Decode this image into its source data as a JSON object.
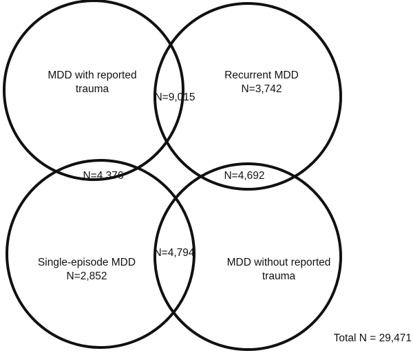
{
  "diagram": {
    "circle_color": "#111111",
    "sets": {
      "trauma": {
        "line1": "MDD with reported",
        "line2": "trauma"
      },
      "recurrent": {
        "line1": "Recurrent MDD",
        "line2": "N=3,742"
      },
      "single_episode": {
        "line1": "Single-episode MDD",
        "line2": "N=2,852"
      },
      "no_trauma": {
        "line1": "MDD without reported",
        "line2": "trauma"
      }
    },
    "overlaps": {
      "trauma_recurrent": "N=9,015",
      "trauma_single_episode": "N=4,376",
      "recurrent_no_trauma": "N=4,692",
      "single_episode_no_trauma": "N=4,794"
    },
    "total": "Total N = 29,471"
  }
}
